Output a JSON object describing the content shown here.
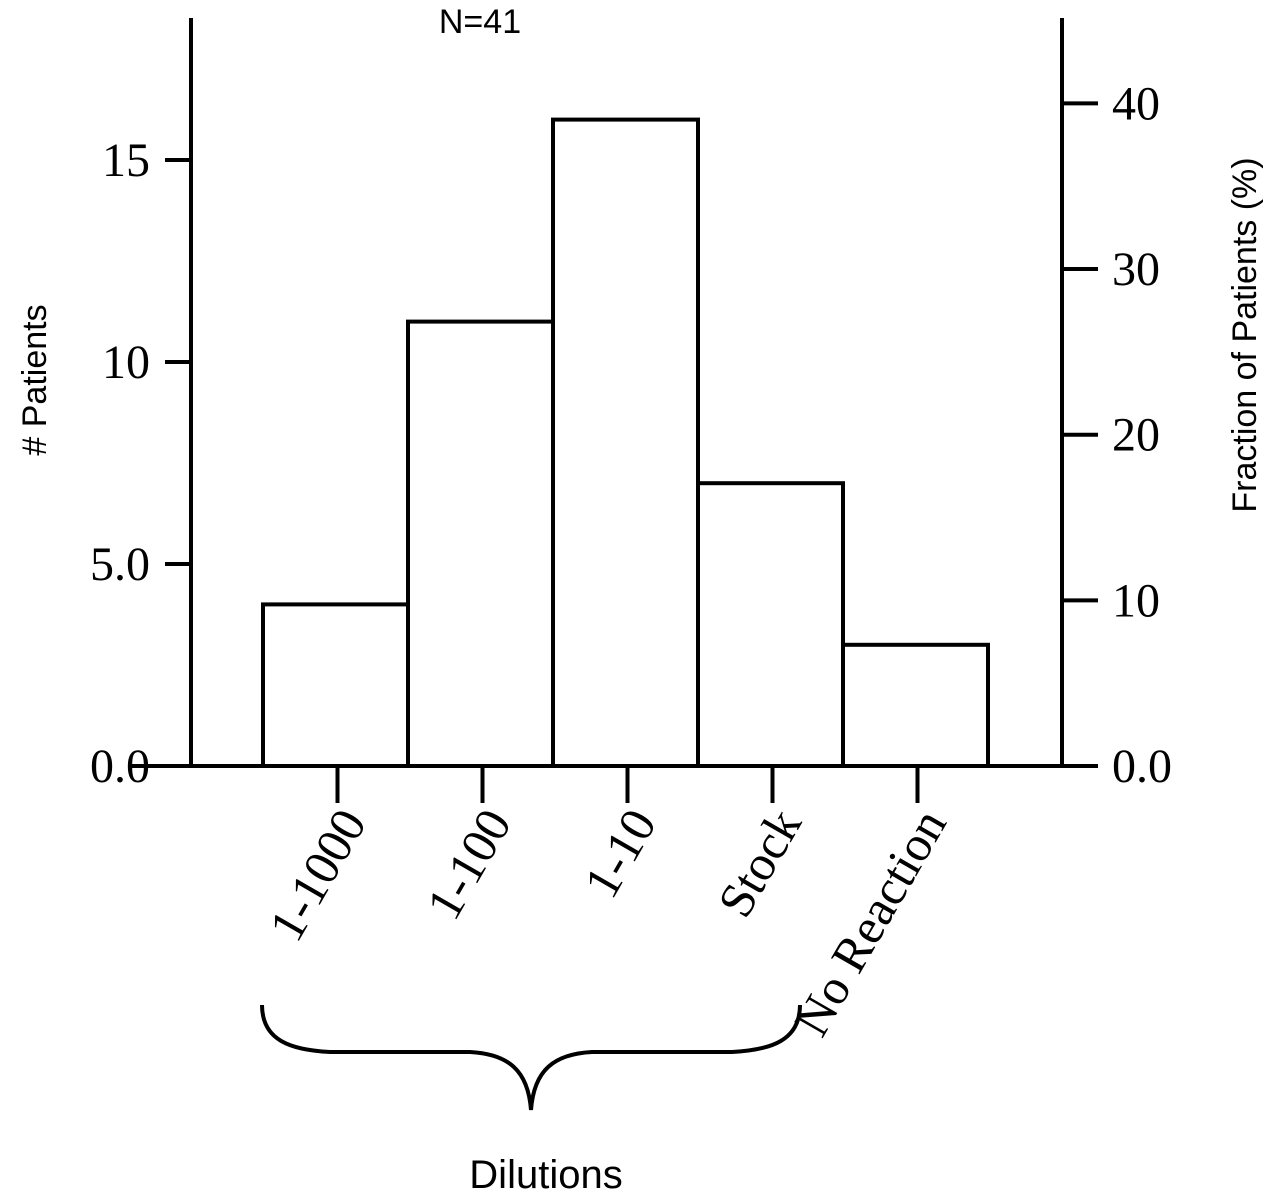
{
  "chart_data": {
    "type": "bar",
    "annotation": "N=41",
    "categories": [
      "1-1000",
      "1-100",
      "1-10",
      "Stock",
      "No Reaction"
    ],
    "values": [
      4,
      11,
      16,
      7,
      3
    ],
    "ylabel": "# Patients",
    "ylabel_right": "Fraction of Patients (%)",
    "ylim": [
      0,
      18
    ],
    "yticks": [
      "0.0",
      "5.0",
      "10",
      "15"
    ],
    "ylim_right": [
      0,
      43.9
    ],
    "yticks_right": [
      "0.0",
      "10",
      "20",
      "30",
      "40"
    ],
    "group": {
      "label": "Dilutions",
      "categories": [
        "1-1000",
        "1-100",
        "1-10",
        "Stock"
      ]
    },
    "grid": false,
    "legend": "none"
  }
}
